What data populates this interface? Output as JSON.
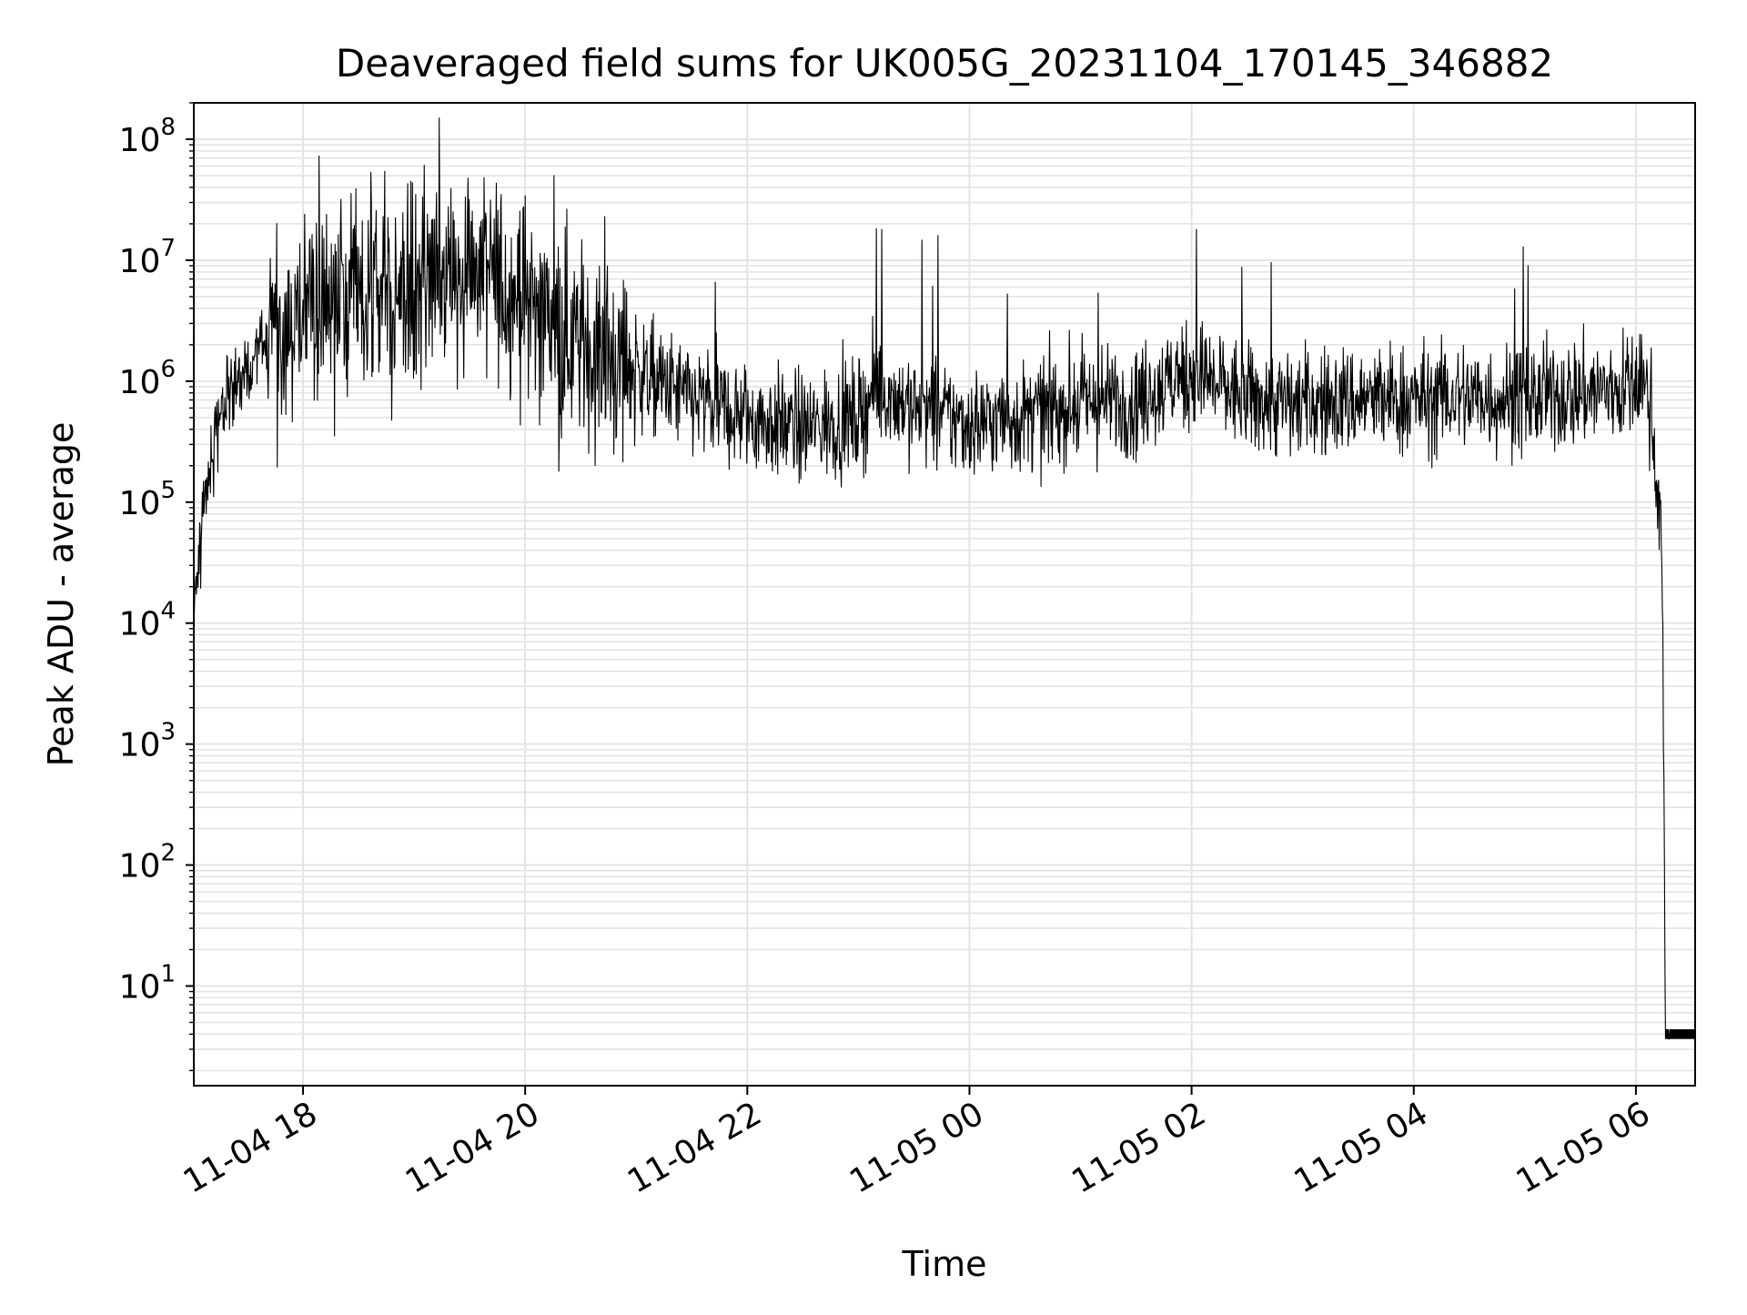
{
  "chart_data": {
    "type": "line",
    "title": "Deaveraged field sums for UK005G_20231104_170145_346882",
    "xlabel": "Time",
    "ylabel": "Peak ADU - average",
    "yscale": "log",
    "ylim": [
      1.5,
      200000000
    ],
    "xlim": [
      "2023-11-04 17:01",
      "2023-11-05 06:32"
    ],
    "grid": true,
    "line_color": "#000000",
    "grid_color": "#e3e3e3",
    "x_ticks": [
      {
        "label": "11-04 18",
        "t": "2023-11-04 18:00"
      },
      {
        "label": "11-04 20",
        "t": "2023-11-04 20:00"
      },
      {
        "label": "11-04 22",
        "t": "2023-11-04 22:00"
      },
      {
        "label": "11-05 00",
        "t": "2023-11-05 00:00"
      },
      {
        "label": "11-05 02",
        "t": "2023-11-05 02:00"
      },
      {
        "label": "11-05 04",
        "t": "2023-11-05 04:00"
      },
      {
        "label": "11-05 06",
        "t": "2023-11-05 06:00"
      }
    ],
    "y_ticks": [
      {
        "base": "10",
        "exp": "1",
        "value": 10
      },
      {
        "base": "10",
        "exp": "2",
        "value": 100
      },
      {
        "base": "10",
        "exp": "3",
        "value": 1000
      },
      {
        "base": "10",
        "exp": "4",
        "value": 10000
      },
      {
        "base": "10",
        "exp": "5",
        "value": 100000
      },
      {
        "base": "10",
        "exp": "6",
        "value": 1000000
      },
      {
        "base": "10",
        "exp": "7",
        "value": 10000000
      },
      {
        "base": "10",
        "exp": "8",
        "value": 100000000
      }
    ],
    "series": [
      {
        "x": [
          "2023-11-04 17:01",
          "2023-11-04 17:03",
          "2023-11-04 17:05",
          "2023-11-04 17:08",
          "2023-11-04 17:12",
          "2023-11-04 17:16",
          "2023-11-04 17:20",
          "2023-11-04 17:25",
          "2023-11-04 17:30",
          "2023-11-04 17:40",
          "2023-11-04 18:00",
          "2023-11-04 18:30",
          "2023-11-04 19:00",
          "2023-11-04 19:30",
          "2023-11-04 20:00",
          "2023-11-04 20:30",
          "2023-11-04 21:00",
          "2023-11-04 21:30",
          "2023-11-04 22:00",
          "2023-11-04 22:30",
          "2023-11-04 23:00",
          "2023-11-04 23:10",
          "2023-11-04 23:30",
          "2023-11-05 00:00",
          "2023-11-05 00:30",
          "2023-11-05 01:00",
          "2023-11-05 01:30",
          "2023-11-05 01:50",
          "2023-11-05 02:00",
          "2023-11-05 02:30",
          "2023-11-05 03:00",
          "2023-11-05 03:30",
          "2023-11-05 04:00",
          "2023-11-05 04:30",
          "2023-11-05 05:00",
          "2023-11-05 05:30",
          "2023-11-05 06:00",
          "2023-11-05 06:05",
          "2023-11-05 06:08",
          "2023-11-05 06:10",
          "2023-11-05 06:14",
          "2023-11-05 06:16",
          "2023-11-05 06:18",
          "2023-11-05 06:32"
        ],
        "y": [
          10000,
          30000,
          60000,
          150000,
          300000,
          500000,
          700000,
          900000,
          1200000,
          2000000,
          3500000,
          5000000,
          6000000,
          9000000,
          5000000,
          2000000,
          1200000,
          700000,
          500000,
          400000,
          500000,
          900000,
          600000,
          450000,
          500000,
          650000,
          700000,
          1000000,
          1200000,
          700000,
          650000,
          700000,
          700000,
          750000,
          700000,
          800000,
          900000,
          1000000,
          600000,
          300000,
          50000,
          4,
          4,
          4
        ]
      }
    ]
  }
}
